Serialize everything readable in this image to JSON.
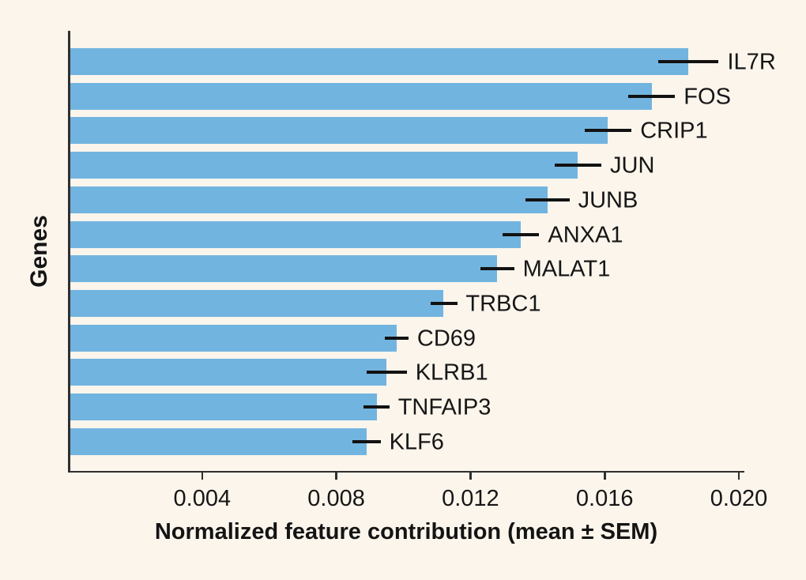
{
  "figure": {
    "background_color": "#fbf5ec",
    "bar_color": "#72b4e0",
    "axis_color": "#2f2f2f",
    "text_color": "#161616",
    "errorbar_color": "#121212"
  },
  "chart_data": {
    "type": "bar",
    "orientation": "horizontal",
    "title": "",
    "xlabel": "Normalized feature contribution (mean ± SEM)",
    "ylabel": "Genes",
    "xlim": [
      0,
      0.02
    ],
    "xticks": [
      0.004,
      0.008,
      0.012,
      0.016,
      0.02
    ],
    "xtick_labels": [
      "0.004",
      "0.008",
      "0.012",
      "0.016",
      "0.020"
    ],
    "grid": false,
    "legend": null,
    "error_bars": "horizontal lines at bar ends, mean ± SEM, no caps",
    "categories": [
      "IL7R",
      "FOS",
      "CRIP1",
      "JUN",
      "JUNB",
      "ANXA1",
      "MALAT1",
      "TRBC1",
      "CD69",
      "KLRB1",
      "TNFAIP3",
      "KLF6"
    ],
    "values": [
      0.0185,
      0.0174,
      0.0161,
      0.0152,
      0.0143,
      0.0135,
      0.0128,
      0.0112,
      0.0098,
      0.0095,
      0.0092,
      0.0089
    ],
    "sem": [
      0.0009,
      0.0007,
      0.0007,
      0.0007,
      0.00065,
      0.00055,
      0.0005,
      0.0004,
      0.00035,
      0.0006,
      0.00038,
      0.00042
    ]
  }
}
